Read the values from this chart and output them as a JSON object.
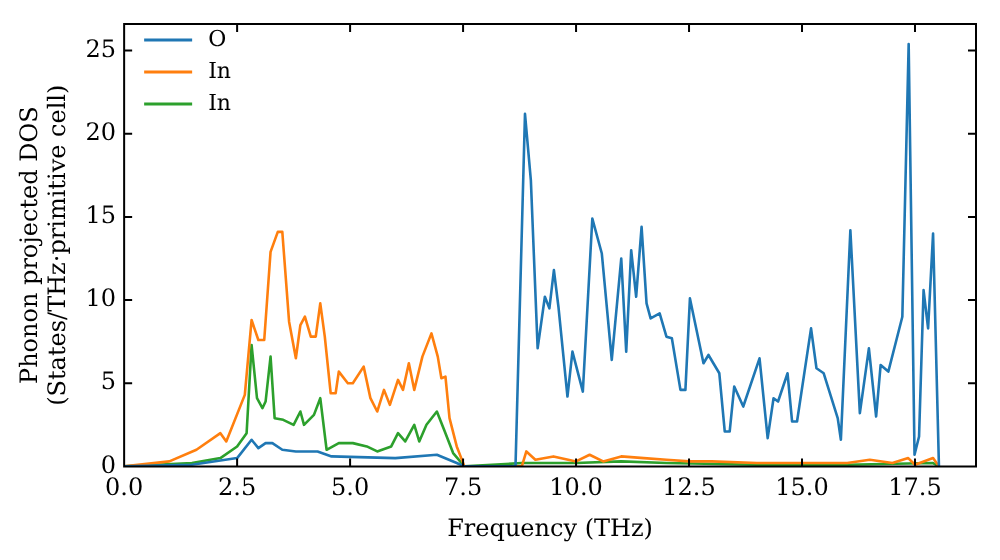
{
  "chart_data": {
    "type": "line",
    "xlabel": "Frequency (THz)",
    "ylabel": "Phonon projected DOS\n(States/THz·primitive cell)",
    "xlim": [
      0,
      18.85
    ],
    "ylim": [
      0,
      26.6
    ],
    "xticks": [
      {
        "value": 0,
        "label": "0.0"
      },
      {
        "value": 2.5,
        "label": "2.5"
      },
      {
        "value": 5,
        "label": "5.0"
      },
      {
        "value": 7.5,
        "label": "7.5"
      },
      {
        "value": 10,
        "label": "10.0"
      },
      {
        "value": 12.5,
        "label": "12.5"
      },
      {
        "value": 15,
        "label": "15.0"
      },
      {
        "value": 17.5,
        "label": "17.5"
      }
    ],
    "yticks": [
      0,
      5,
      10,
      15,
      20,
      25
    ],
    "grid": false,
    "legend": "top left",
    "marker": "none",
    "line_style": "solid",
    "series": [
      {
        "name": "O",
        "color": "#1f77b4",
        "x": [
          0,
          1.5,
          2.5,
          2.82,
          2.97,
          3.13,
          3.28,
          3.5,
          3.8,
          4.28,
          4.59,
          6.0,
          6.92,
          7.36,
          7.53,
          8.66,
          8.87,
          9.0,
          9.15,
          9.31,
          9.41,
          9.51,
          9.61,
          9.81,
          9.92,
          10.15,
          10.36,
          10.57,
          10.79,
          11.0,
          11.11,
          11.22,
          11.33,
          11.45,
          11.56,
          11.65,
          11.85,
          12.0,
          12.12,
          12.31,
          12.42,
          12.52,
          12.82,
          12.93,
          13.17,
          13.29,
          13.4,
          13.5,
          13.7,
          14.06,
          14.24,
          14.37,
          14.47,
          14.68,
          14.78,
          14.89,
          15.2,
          15.32,
          15.48,
          15.79,
          15.86,
          16.07,
          16.28,
          16.48,
          16.64,
          16.74,
          16.91,
          17.22,
          17.36,
          17.49,
          17.59,
          17.69,
          17.79,
          17.9,
          18.03
        ],
        "values": [
          0,
          0.1,
          0.5,
          1.6,
          1.1,
          1.4,
          1.4,
          1.0,
          0.9,
          0.9,
          0.6,
          0.5,
          0.7,
          0.2,
          0,
          0,
          21.2,
          17.2,
          7.1,
          10.2,
          9.5,
          11.8,
          9.6,
          4.2,
          6.9,
          4.5,
          14.9,
          12.8,
          6.4,
          12.5,
          6.9,
          13.0,
          10.2,
          14.4,
          9.8,
          8.9,
          9.2,
          7.8,
          7.7,
          4.6,
          4.6,
          10.1,
          6.2,
          6.7,
          5.6,
          2.1,
          2.1,
          4.8,
          3.6,
          6.5,
          1.7,
          4.1,
          3.9,
          5.6,
          2.7,
          2.7,
          8.3,
          5.9,
          5.6,
          2.9,
          1.6,
          14.2,
          3.2,
          7.1,
          3.0,
          6.1,
          5.7,
          9.0,
          25.4,
          0.7,
          1.8,
          10.6,
          8.3,
          14.0,
          0
        ]
      },
      {
        "name": "In",
        "color": "#ff7f0e",
        "x": [
          0,
          1.0,
          1.6,
          2.13,
          2.26,
          2.67,
          2.82,
          2.97,
          3.1,
          3.24,
          3.4,
          3.5,
          3.65,
          3.8,
          3.9,
          4.0,
          4.13,
          4.24,
          4.34,
          4.44,
          4.57,
          4.68,
          4.75,
          4.95,
          5.06,
          5.3,
          5.45,
          5.6,
          5.75,
          5.88,
          6.06,
          6.17,
          6.3,
          6.42,
          6.6,
          6.8,
          6.94,
          7.02,
          7.11,
          7.2,
          7.36,
          7.53,
          8.8,
          8.9,
          9.1,
          9.5,
          10.0,
          10.3,
          10.6,
          11.0,
          11.5,
          12.0,
          12.5,
          13.0,
          14.0,
          15.0,
          16.0,
          16.5,
          17.0,
          17.35,
          17.5,
          17.9,
          18.03
        ],
        "values": [
          0,
          0.3,
          1.0,
          2.0,
          1.5,
          4.3,
          8.8,
          7.6,
          7.6,
          12.9,
          14.1,
          14.1,
          8.7,
          6.5,
          8.5,
          9.0,
          7.8,
          7.8,
          9.8,
          7.8,
          4.4,
          4.4,
          5.7,
          5.0,
          5.0,
          6.0,
          4.1,
          3.3,
          4.6,
          3.7,
          5.2,
          4.6,
          6.2,
          4.6,
          6.6,
          8.0,
          6.6,
          5.3,
          5.4,
          2.9,
          1.2,
          0,
          0,
          0.9,
          0.4,
          0.6,
          0.3,
          0.7,
          0.3,
          0.6,
          0.5,
          0.4,
          0.3,
          0.3,
          0.2,
          0.2,
          0.2,
          0.4,
          0.2,
          0.5,
          0.1,
          0.5,
          0
        ]
      },
      {
        "name": "In",
        "color": "#2ca02c",
        "x": [
          0,
          1.5,
          2.13,
          2.5,
          2.71,
          2.82,
          2.94,
          3.06,
          3.13,
          3.24,
          3.33,
          3.52,
          3.75,
          3.9,
          3.98,
          4.2,
          4.34,
          4.48,
          4.75,
          5.06,
          5.37,
          5.6,
          5.91,
          6.06,
          6.22,
          6.42,
          6.53,
          6.69,
          6.92,
          7.08,
          7.28,
          7.53,
          8.8,
          10.0,
          11.0,
          12.0,
          14.0,
          16.0,
          17.9,
          18.03
        ],
        "values": [
          0,
          0.2,
          0.5,
          1.2,
          2.0,
          7.3,
          4.1,
          3.5,
          3.9,
          6.6,
          2.9,
          2.8,
          2.5,
          3.3,
          2.5,
          3.1,
          4.1,
          1.0,
          1.4,
          1.4,
          1.2,
          0.9,
          1.2,
          2.0,
          1.5,
          2.5,
          1.5,
          2.5,
          3.3,
          2.2,
          0.8,
          0,
          0.2,
          0.2,
          0.3,
          0.2,
          0.1,
          0.1,
          0.2,
          0
        ]
      }
    ]
  }
}
